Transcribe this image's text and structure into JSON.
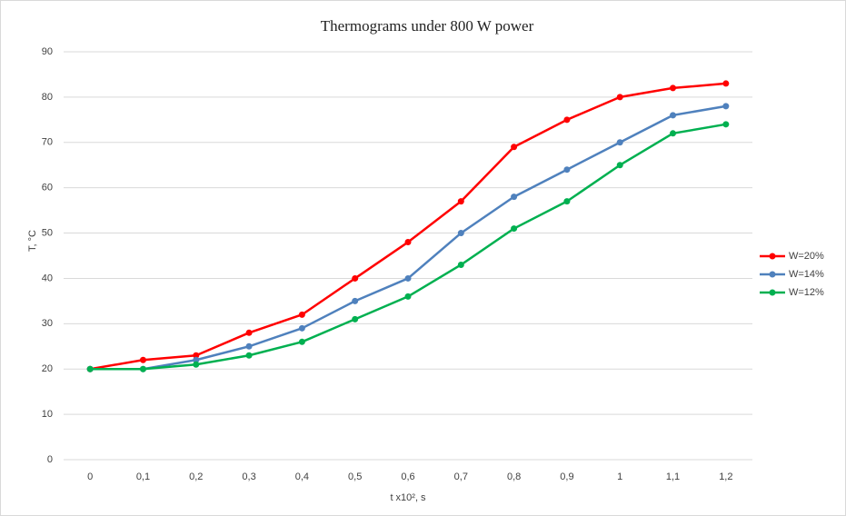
{
  "chart_data": {
    "type": "line",
    "title": "Thermograms under 800 W power",
    "x_label": "t x10², s",
    "y_label": "T, °C",
    "categories": [
      "0",
      "0,1",
      "0,2",
      "0,3",
      "0,4",
      "0,5",
      "0,6",
      "0,7",
      "0,8",
      "0,9",
      "1",
      "1,1",
      "1,2"
    ],
    "series": [
      {
        "name": "W=20%",
        "color": "#ff0000",
        "values": [
          20,
          22,
          23,
          28,
          32,
          40,
          48,
          57,
          69,
          75,
          80,
          82,
          83
        ]
      },
      {
        "name": "W=14%",
        "color": "#4f81bd",
        "values": [
          20,
          20,
          22,
          25,
          29,
          35,
          40,
          50,
          58,
          64,
          70,
          76,
          78
        ]
      },
      {
        "name": "W=12%",
        "color": "#00b050",
        "values": [
          20,
          20,
          21,
          23,
          26,
          31,
          36,
          43,
          51,
          57,
          65,
          72,
          74
        ]
      }
    ],
    "ylim": [
      0,
      90
    ],
    "yticks": [
      0,
      10,
      20,
      30,
      40,
      50,
      60,
      70,
      80,
      90
    ],
    "grid": true,
    "legend": "right"
  }
}
